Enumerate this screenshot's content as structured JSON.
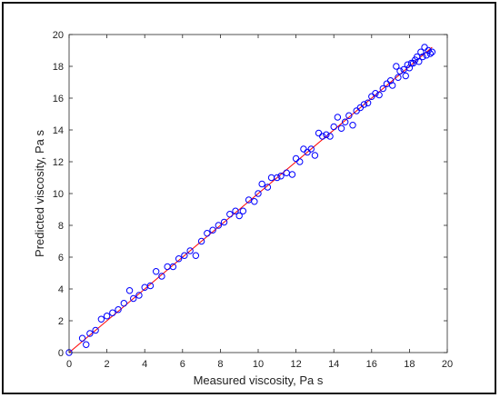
{
  "chart_data": {
    "type": "scatter",
    "title": "",
    "xlabel": "Measured viscosity, Pa s",
    "ylabel": "Predicted viscosity, Pa s",
    "xlim": [
      0,
      20
    ],
    "ylim": [
      0,
      20
    ],
    "xticks": [
      "0",
      "2",
      "4",
      "6",
      "8",
      "10",
      "12",
      "14",
      "16",
      "18",
      "20"
    ],
    "yticks": [
      "0",
      "2",
      "4",
      "6",
      "8",
      "10",
      "12",
      "14",
      "16",
      "18",
      "20"
    ],
    "grid": false,
    "legend": "none",
    "box": true,
    "series": [
      {
        "type": "scatter",
        "marker": "open-circle",
        "color": "#0000ff",
        "points": [
          [
            0.0,
            0.0
          ],
          [
            0.7,
            0.9
          ],
          [
            0.9,
            0.5
          ],
          [
            1.1,
            1.2
          ],
          [
            1.4,
            1.4
          ],
          [
            1.7,
            2.1
          ],
          [
            2.0,
            2.3
          ],
          [
            2.3,
            2.5
          ],
          [
            2.6,
            2.7
          ],
          [
            2.9,
            3.1
          ],
          [
            3.2,
            3.9
          ],
          [
            3.4,
            3.4
          ],
          [
            3.7,
            3.6
          ],
          [
            4.0,
            4.1
          ],
          [
            4.3,
            4.2
          ],
          [
            4.6,
            5.1
          ],
          [
            4.9,
            4.8
          ],
          [
            5.2,
            5.4
          ],
          [
            5.5,
            5.4
          ],
          [
            5.8,
            5.9
          ],
          [
            6.1,
            6.1
          ],
          [
            6.4,
            6.4
          ],
          [
            6.7,
            6.1
          ],
          [
            7.0,
            7.0
          ],
          [
            7.3,
            7.5
          ],
          [
            7.6,
            7.7
          ],
          [
            7.9,
            8.0
          ],
          [
            8.2,
            8.2
          ],
          [
            8.5,
            8.7
          ],
          [
            8.8,
            8.9
          ],
          [
            9.0,
            8.6
          ],
          [
            9.2,
            8.9
          ],
          [
            9.5,
            9.6
          ],
          [
            9.8,
            9.5
          ],
          [
            10.0,
            10.0
          ],
          [
            10.2,
            10.6
          ],
          [
            10.5,
            10.4
          ],
          [
            10.7,
            11.0
          ],
          [
            11.0,
            11.0
          ],
          [
            11.2,
            11.1
          ],
          [
            11.5,
            11.3
          ],
          [
            11.8,
            11.2
          ],
          [
            12.0,
            12.2
          ],
          [
            12.2,
            12.0
          ],
          [
            12.4,
            12.8
          ],
          [
            12.6,
            12.6
          ],
          [
            12.8,
            12.8
          ],
          [
            13.0,
            12.4
          ],
          [
            13.2,
            13.8
          ],
          [
            13.4,
            13.6
          ],
          [
            13.6,
            13.7
          ],
          [
            13.8,
            13.6
          ],
          [
            14.0,
            14.2
          ],
          [
            14.2,
            14.8
          ],
          [
            14.4,
            14.1
          ],
          [
            14.6,
            14.5
          ],
          [
            14.8,
            14.9
          ],
          [
            15.0,
            14.3
          ],
          [
            15.2,
            15.2
          ],
          [
            15.4,
            15.4
          ],
          [
            15.6,
            15.6
          ],
          [
            15.8,
            15.7
          ],
          [
            16.0,
            16.1
          ],
          [
            16.2,
            16.3
          ],
          [
            16.4,
            16.2
          ],
          [
            16.6,
            16.6
          ],
          [
            16.8,
            16.9
          ],
          [
            17.0,
            17.1
          ],
          [
            17.1,
            16.8
          ],
          [
            17.3,
            18.0
          ],
          [
            17.4,
            17.3
          ],
          [
            17.5,
            17.7
          ],
          [
            17.7,
            17.8
          ],
          [
            17.8,
            17.4
          ],
          [
            17.9,
            18.1
          ],
          [
            18.0,
            17.9
          ],
          [
            18.1,
            18.2
          ],
          [
            18.2,
            18.2
          ],
          [
            18.3,
            18.4
          ],
          [
            18.4,
            18.6
          ],
          [
            18.5,
            18.3
          ],
          [
            18.6,
            18.9
          ],
          [
            18.7,
            18.6
          ],
          [
            18.8,
            19.2
          ],
          [
            18.9,
            18.7
          ],
          [
            19.0,
            19.0
          ],
          [
            19.1,
            18.8
          ],
          [
            19.2,
            18.9
          ]
        ]
      },
      {
        "type": "line",
        "color": "#ff0000",
        "x": [
          0,
          19.2
        ],
        "y": [
          0,
          19.2
        ]
      }
    ]
  }
}
